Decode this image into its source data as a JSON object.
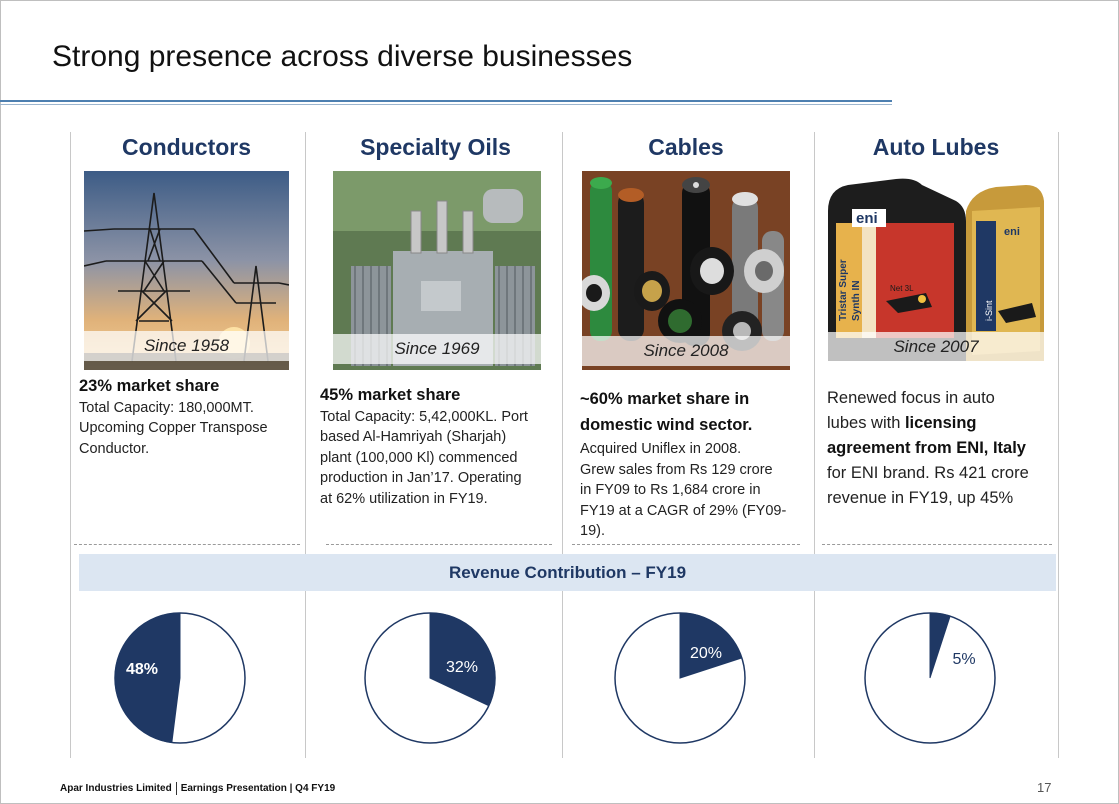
{
  "slide": {
    "title": "Strong presence across diverse businesses",
    "revenue_band": "Revenue Contribution – FY19",
    "footer_company": "Apar Industries Limited",
    "footer_doc": "Earnings Presentation | Q4 FY19",
    "page_number": "17"
  },
  "colors": {
    "navy": "#1f3864",
    "band": "#dce6f2",
    "rule": "#4d7fb0"
  },
  "segments": [
    {
      "name": "Conductors",
      "since": "Since 1958",
      "image_icon": "power-transmission-tower-icon",
      "line1_bold": "23% market share",
      "line2": "Total Capacity: 180,000MT.",
      "line3": "Upcoming Copper Transpose",
      "line4": "Conductor."
    },
    {
      "name": "Specialty Oils",
      "since": "Since 1969",
      "image_icon": "transformer-icon",
      "line1_bold": "45% market share",
      "line2": "Total Capacity: 5,42,000KL. Port",
      "line3": "based Al-Hamriyah (Sharjah)",
      "line4": "plant (100,000 Kl) commenced",
      "line5": "production in Jan’17. Operating",
      "line6": "at 62% utilization in FY19."
    },
    {
      "name": "Cables",
      "since": "Since 2008",
      "image_icon": "cable-cross-sections-icon",
      "line1_bold": "~60% market share in",
      "line2_bold": "domestic wind sector.",
      "line3": "Acquired Uniflex in 2008.",
      "line4": "Grew sales from Rs 129 crore",
      "line5": "in FY09 to Rs 1,684 crore in",
      "line6": "FY19 at a CAGR of 29% (FY09-",
      "line7": "19)."
    },
    {
      "name": "Auto Lubes",
      "since": "Since 2007",
      "image_icon": "eni-lubricant-cans-icon",
      "line1": "Renewed focus in auto",
      "line2a": "lubes with ",
      "line2b": "licensing",
      "line3_bold": "agreement from ENI, Italy",
      "line4": "for ENI brand. Rs 421 crore",
      "line5": "revenue in FY19, up 45%",
      "can_brand": "eni",
      "can_product": "i-Sint",
      "can_text_a": "Tristar Super",
      "can_text_b": "Synth IN",
      "can_volume": "Net 3L"
    }
  ],
  "chart_data": [
    {
      "type": "pie",
      "title": "Conductors",
      "values": [
        48,
        52
      ],
      "labels": [
        "48%",
        ""
      ]
    },
    {
      "type": "pie",
      "title": "Specialty Oils",
      "values": [
        32,
        68
      ],
      "labels": [
        "32%",
        ""
      ]
    },
    {
      "type": "pie",
      "title": "Cables",
      "values": [
        20,
        80
      ],
      "labels": [
        "20%",
        ""
      ]
    },
    {
      "type": "pie",
      "title": "Auto Lubes",
      "values": [
        5,
        95
      ],
      "labels": [
        "5%",
        ""
      ]
    }
  ]
}
